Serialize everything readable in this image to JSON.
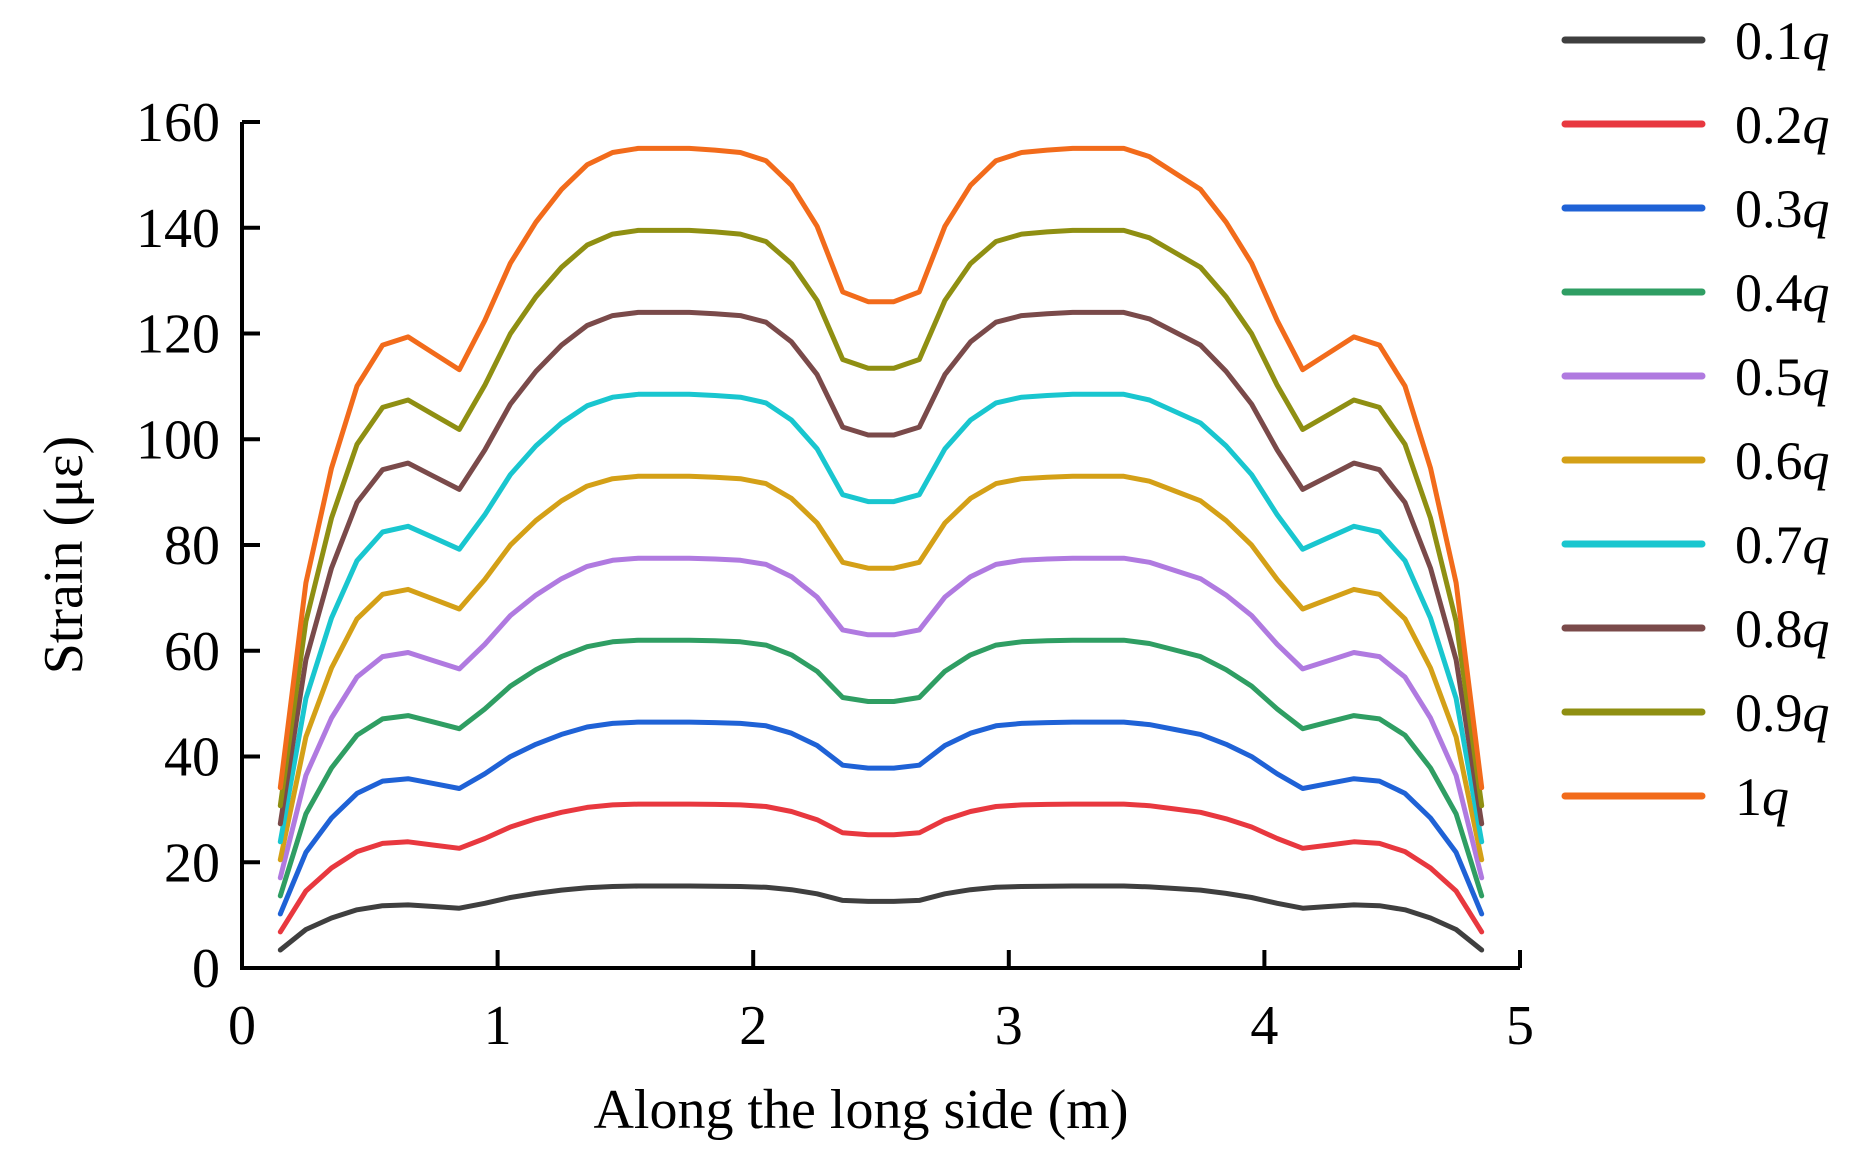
{
  "chart_data": {
    "type": "line",
    "title": "",
    "xlabel": "Along the long side (m)",
    "ylabel": "Strain (με)",
    "xlim": [
      0,
      5
    ],
    "ylim": [
      0,
      160
    ],
    "x_ticks": [
      "0",
      "1",
      "2",
      "3",
      "4",
      "5"
    ],
    "y_ticks": [
      "0",
      "20",
      "40",
      "60",
      "80",
      "100",
      "120",
      "140",
      "160"
    ],
    "grid": false,
    "legend_position": "right",
    "x": [
      0.15,
      0.25,
      0.35,
      0.45,
      0.55,
      0.65,
      0.75,
      0.85,
      0.95,
      1.05,
      1.15,
      1.25,
      1.35,
      1.45,
      1.55,
      1.65,
      1.75,
      1.85,
      1.95,
      2.05,
      2.15,
      2.25,
      2.35,
      2.45,
      2.55,
      2.65,
      2.75,
      2.85,
      2.95,
      3.05,
      3.15,
      3.25,
      3.35,
      3.45,
      3.55,
      3.65,
      3.75,
      3.85,
      3.95,
      4.05,
      4.15,
      4.25,
      4.35,
      4.45,
      4.55,
      4.65,
      4.75,
      4.85
    ],
    "base_shape": [
      0.22,
      0.47,
      0.61,
      0.71,
      0.76,
      0.77,
      0.75,
      0.73,
      0.79,
      0.86,
      0.91,
      0.95,
      0.98,
      0.995,
      1.0,
      1.0,
      1.0,
      0.998,
      0.995,
      0.985,
      0.955,
      0.905,
      0.825,
      0.813,
      0.813,
      0.825,
      0.905,
      0.955,
      0.985,
      0.995,
      0.998,
      1.0,
      1.0,
      1.0,
      0.99,
      0.97,
      0.95,
      0.91,
      0.86,
      0.79,
      0.73,
      0.75,
      0.77,
      0.76,
      0.71,
      0.61,
      0.47,
      0.22
    ],
    "series": [
      {
        "name": "0.1q",
        "label": "0.1",
        "italic": "q",
        "color": "#3f3f3f",
        "peak": 15.5
      },
      {
        "name": "0.2q",
        "label": "0.2",
        "italic": "q",
        "color": "#e8383f",
        "peak": 31
      },
      {
        "name": "0.3q",
        "label": "0.3",
        "italic": "q",
        "color": "#1f62d6",
        "peak": 46.5
      },
      {
        "name": "0.4q",
        "label": "0.4",
        "italic": "q",
        "color": "#2f9e63",
        "peak": 62
      },
      {
        "name": "0.5q",
        "label": "0.5",
        "italic": "q",
        "color": "#b07ae0",
        "peak": 77.5
      },
      {
        "name": "0.6q",
        "label": "0.6",
        "italic": "q",
        "color": "#d4a017",
        "peak": 93
      },
      {
        "name": "0.7q",
        "label": "0.7",
        "italic": "q",
        "color": "#19c6cf",
        "peak": 108.5
      },
      {
        "name": "0.8q",
        "label": "0.8",
        "italic": "q",
        "color": "#7a4a4a",
        "peak": 124
      },
      {
        "name": "0.9q",
        "label": "0.9",
        "italic": "q",
        "color": "#8f8f12",
        "peak": 139.5
      },
      {
        "name": "1q",
        "label": "1",
        "italic": "q",
        "color": "#f26b1b",
        "peak": 155
      }
    ]
  }
}
